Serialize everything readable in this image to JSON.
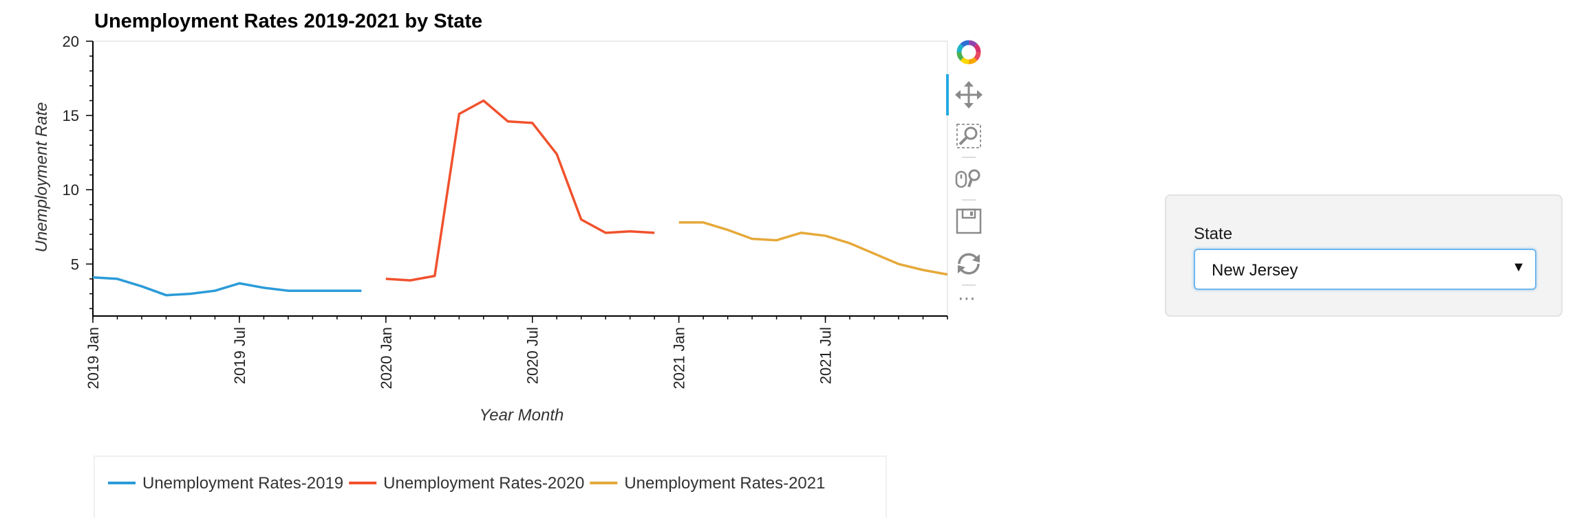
{
  "chart_data": {
    "type": "line",
    "title": "Unemployment Rates 2019-2021 by State",
    "xlabel": "Year Month",
    "ylabel": "Unemployment Rate",
    "ylim": [
      1.5,
      20
    ],
    "xlim": [
      "2019-01",
      "2021-12"
    ],
    "y_ticks": [
      "5",
      "10",
      "15",
      "20"
    ],
    "x_ticks": [
      "2019 Jan",
      "2019 Jul",
      "2020 Jan",
      "2020 Jul",
      "2021 Jan",
      "2021 Jul"
    ],
    "grid": false,
    "legend_position": "bottom",
    "series": [
      {
        "name": "Unemployment Rates-2019",
        "color": "#2b9bd8",
        "x": [
          "2019-01",
          "2019-02",
          "2019-03",
          "2019-04",
          "2019-05",
          "2019-06",
          "2019-07",
          "2019-08",
          "2019-09",
          "2019-10",
          "2019-11",
          "2019-12"
        ],
        "values": [
          4.1,
          4.0,
          3.5,
          2.9,
          3.0,
          3.2,
          3.7,
          3.4,
          3.2,
          3.2,
          3.2,
          3.2
        ]
      },
      {
        "name": "Unemployment Rates-2020",
        "color": "#f1512d",
        "x": [
          "2020-01",
          "2020-02",
          "2020-03",
          "2020-04",
          "2020-05",
          "2020-06",
          "2020-07",
          "2020-08",
          "2020-09",
          "2020-10",
          "2020-11",
          "2020-12"
        ],
        "values": [
          4.0,
          3.9,
          4.2,
          15.1,
          16.0,
          14.6,
          14.5,
          12.4,
          8.0,
          7.1,
          7.2,
          7.1
        ]
      },
      {
        "name": "Unemployment Rates-2021",
        "color": "#e5a93a",
        "x": [
          "2021-01",
          "2021-02",
          "2021-03",
          "2021-04",
          "2021-05",
          "2021-06",
          "2021-07",
          "2021-08",
          "2021-09",
          "2021-10",
          "2021-11",
          "2021-12"
        ],
        "values": [
          7.8,
          7.8,
          7.3,
          6.7,
          6.6,
          7.1,
          6.9,
          6.4,
          5.7,
          5.0,
          4.6,
          4.3
        ]
      }
    ]
  },
  "toolbar": {
    "items": [
      "logo-icon",
      "pan-icon",
      "box-zoom-icon",
      "wheel-zoom-icon",
      "save-icon",
      "reset-icon",
      "more-icon"
    ],
    "more_label": "⋯"
  },
  "widget": {
    "label": "State",
    "selected": "New Jersey",
    "caret": "▼"
  }
}
